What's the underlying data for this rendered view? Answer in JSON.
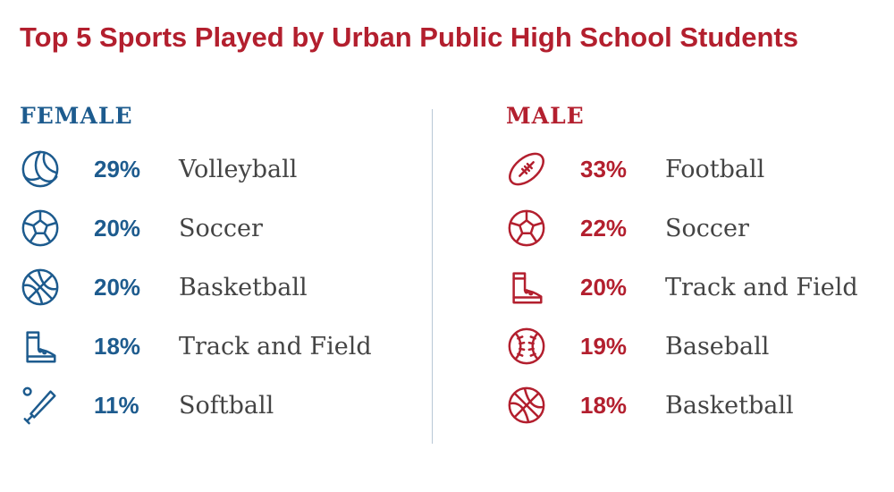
{
  "chart_data": {
    "type": "table",
    "title": "Top 5 Sports Played by Urban Public High School Students",
    "colors": {
      "title": "#b31f2e",
      "female": "#1d5b8e",
      "male": "#b31f2e",
      "divider": "#b8c7d6"
    },
    "groups": [
      {
        "name": "FEMALE",
        "color": "#1d5b8e",
        "rows": [
          {
            "icon": "volleyball-icon",
            "value": "29%",
            "sport": "Volleyball"
          },
          {
            "icon": "soccer-ball-icon",
            "value": "20%",
            "sport": "Soccer"
          },
          {
            "icon": "basketball-icon",
            "value": "20%",
            "sport": "Basketball"
          },
          {
            "icon": "track-shoe-icon",
            "value": "18%",
            "sport": "Track and Field"
          },
          {
            "icon": "softball-bat-icon",
            "value": "11%",
            "sport": "Softball"
          }
        ]
      },
      {
        "name": "MALE",
        "color": "#b31f2e",
        "rows": [
          {
            "icon": "football-icon",
            "value": "33%",
            "sport": "Football"
          },
          {
            "icon": "soccer-ball-icon",
            "value": "22%",
            "sport": "Soccer"
          },
          {
            "icon": "track-shoe-icon",
            "value": "20%",
            "sport": "Track and Field"
          },
          {
            "icon": "baseball-icon",
            "value": "19%",
            "sport": "Baseball"
          },
          {
            "icon": "basketball-icon",
            "value": "18%",
            "sport": "Basketball"
          }
        ]
      }
    ]
  }
}
